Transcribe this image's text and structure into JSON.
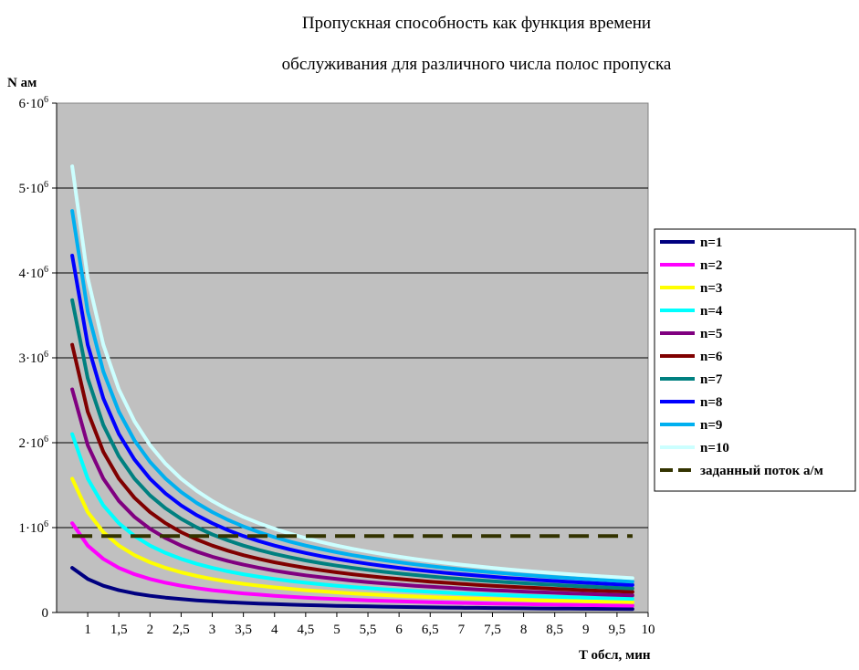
{
  "chart_data": {
    "type": "line",
    "title_lines": [
      "Пропускная способность как функция времени",
      "обслуживания для различного числа полос пропуска"
    ],
    "ylabel": "N ам",
    "xlabel": "T обсл, мин",
    "ylim": [
      0,
      6000000
    ],
    "xlim": [
      0.5,
      10
    ],
    "y_ticks": [
      {
        "value": 0,
        "base": "0",
        "exp": ""
      },
      {
        "value": 1000000,
        "base": "1·10",
        "exp": "6"
      },
      {
        "value": 2000000,
        "base": "2·10",
        "exp": "6"
      },
      {
        "value": 3000000,
        "base": "3·10",
        "exp": "6"
      },
      {
        "value": 4000000,
        "base": "4·10",
        "exp": "6"
      },
      {
        "value": 5000000,
        "base": "5·10",
        "exp": "6"
      },
      {
        "value": 6000000,
        "base": "6·10",
        "exp": "6"
      }
    ],
    "x_ticks": [
      {
        "value": 1,
        "label": "1"
      },
      {
        "value": 1.5,
        "label": "1,5"
      },
      {
        "value": 2,
        "label": "2"
      },
      {
        "value": 2.5,
        "label": "2,5"
      },
      {
        "value": 3,
        "label": "3"
      },
      {
        "value": 3.5,
        "label": "3,5"
      },
      {
        "value": 4,
        "label": "4"
      },
      {
        "value": 4.5,
        "label": "4,5"
      },
      {
        "value": 5,
        "label": "5"
      },
      {
        "value": 5.5,
        "label": "5,5"
      },
      {
        "value": 6,
        "label": "6"
      },
      {
        "value": 6.5,
        "label": "6,5"
      },
      {
        "value": 7,
        "label": "7"
      },
      {
        "value": 7.5,
        "label": "7,5"
      },
      {
        "value": 8,
        "label": "8"
      },
      {
        "value": 8.5,
        "label": "8,5"
      },
      {
        "value": 9,
        "label": "9"
      },
      {
        "value": 9.5,
        "label": "9,5"
      },
      {
        "value": 10,
        "label": "10"
      }
    ],
    "grid": {
      "horizontal": true,
      "vertical": false
    },
    "plot_background": "#C0C0C0",
    "legend_position": "right",
    "x": [
      0.75,
      1,
      1.25,
      1.5,
      1.75,
      2,
      2.25,
      2.5,
      2.75,
      3,
      3.25,
      3.5,
      3.75,
      4,
      4.25,
      4.5,
      4.75,
      5,
      5.25,
      5.5,
      5.75,
      6,
      6.25,
      6.5,
      6.75,
      7,
      7.25,
      7.5,
      7.75,
      8,
      8.25,
      8.5,
      8.75,
      9,
      9.25,
      9.5,
      9.75
    ],
    "series": [
      {
        "name": "n=1",
        "color": "#000080",
        "values": [
          525600,
          394200,
          315360,
          262800,
          225257,
          197100,
          175200,
          157680,
          143345,
          131400,
          121292,
          112629,
          105120,
          98550,
          92753,
          87600,
          82989,
          78840,
          75086,
          71673,
          68557,
          65700,
          63072,
          60646,
          58400,
          56314,
          54372,
          52560,
          50865,
          49275,
          47782,
          46376,
          45051,
          43800,
          42616,
          41495,
          40431
        ]
      },
      {
        "name": "n=2",
        "color": "#FF00FF",
        "values": [
          1051200,
          788400,
          630720,
          525600,
          450514,
          394200,
          350400,
          315360,
          286691,
          262800,
          242585,
          225257,
          210240,
          197100,
          185506,
          175200,
          165979,
          157680,
          150171,
          143345,
          137113,
          131400,
          126144,
          121292,
          116800,
          112629,
          108745,
          105120,
          101729,
          98550,
          95564,
          92753,
          90103,
          87600,
          85232,
          82989,
          80862
        ]
      },
      {
        "name": "n=3",
        "color": "#FFFF00",
        "values": [
          1576800,
          1182600,
          946080,
          788400,
          675771,
          591300,
          525600,
          473040,
          430036,
          394200,
          363877,
          337886,
          315360,
          295650,
          278259,
          262800,
          248968,
          236520,
          225257,
          215018,
          205670,
          197100,
          189216,
          181938,
          175200,
          168943,
          163117,
          157680,
          152594,
          147825,
          143345,
          139129,
          135154,
          131400,
          127849,
          124484,
          121292
        ]
      },
      {
        "name": "n=4",
        "color": "#00FFFF",
        "values": [
          2102400,
          1576800,
          1261440,
          1051200,
          901029,
          788400,
          700800,
          630720,
          573382,
          525600,
          485169,
          450514,
          420480,
          394200,
          371012,
          350400,
          331958,
          315360,
          300343,
          286691,
          274226,
          262800,
          252288,
          242585,
          233600,
          225257,
          217490,
          210240,
          203458,
          197100,
          191127,
          185506,
          180206,
          175200,
          170465,
          165979,
          161723
        ]
      },
      {
        "name": "n=5",
        "color": "#800080",
        "values": [
          2628000,
          1971000,
          1576800,
          1314000,
          1126286,
          985500,
          876000,
          788400,
          716727,
          657000,
          606462,
          563143,
          525600,
          492750,
          463765,
          438000,
          414947,
          394200,
          375429,
          358364,
          342783,
          328500,
          315360,
          303231,
          292000,
          281571,
          271862,
          262800,
          254323,
          246375,
          238909,
          231882,
          225257,
          219000,
          213081,
          207474,
          202154
        ]
      },
      {
        "name": "n=6",
        "color": "#800000",
        "values": [
          3153600,
          2365200,
          1892160,
          1576800,
          1351543,
          1182600,
          1051200,
          946080,
          860073,
          788400,
          727754,
          675771,
          630720,
          591300,
          556518,
          525600,
          497937,
          473040,
          450514,
          430036,
          411339,
          394200,
          378432,
          363877,
          350400,
          337886,
          326234,
          315360,
          305187,
          295650,
          286691,
          278259,
          270309,
          262800,
          255697,
          248968,
          242585
        ]
      },
      {
        "name": "n=7",
        "color": "#008080",
        "values": [
          3679200,
          2759400,
          2207520,
          1839600,
          1576800,
          1379700,
          1226400,
          1103760,
          1003418,
          919800,
          849046,
          788400,
          735840,
          689850,
          649271,
          613200,
          580926,
          551880,
          525600,
          501709,
          479896,
          459900,
          441504,
          424523,
          408800,
          394200,
          380607,
          367920,
          356052,
          344925,
          334473,
          324635,
          315360,
          306600,
          298314,
          290463,
          283015
        ]
      },
      {
        "name": "n=8",
        "color": "#0000FF",
        "values": [
          4204800,
          3153600,
          2522880,
          2102400,
          1802057,
          1576800,
          1401600,
          1261440,
          1146764,
          1051200,
          970338,
          901029,
          840960,
          788400,
          742024,
          700800,
          663916,
          630720,
          600686,
          573382,
          548452,
          525600,
          504576,
          485169,
          467200,
          450514,
          434979,
          420480,
          406916,
          394200,
          382255,
          371012,
          360411,
          350400,
          340930,
          331958,
          323446
        ]
      },
      {
        "name": "n=9",
        "color": "#00B0F0",
        "values": [
          4730400,
          3547800,
          2838240,
          2365200,
          2027314,
          1773900,
          1576800,
          1419120,
          1290109,
          1182600,
          1091631,
          1013657,
          946080,
          886950,
          834776,
          788400,
          746905,
          709560,
          675771,
          645055,
          617009,
          591300,
          567648,
          545815,
          525600,
          506829,
          489352,
          473040,
          457781,
          443475,
          430036,
          417388,
          405463,
          394200,
          383546,
          373453,
          363877
        ]
      },
      {
        "name": "n=10",
        "color": "#CCFFFF",
        "values": [
          5256000,
          3942000,
          3153600,
          2628000,
          2252571,
          1971000,
          1752000,
          1576800,
          1433455,
          1314000,
          1212923,
          1126286,
          1051200,
          985500,
          927529,
          876000,
          829895,
          788400,
          750857,
          716727,
          685565,
          657000,
          630720,
          606462,
          584000,
          563143,
          543724,
          525600,
          508645,
          492750,
          477818,
          463765,
          450514,
          438000,
          426162,
          414947,
          404308
        ]
      }
    ],
    "reference_line": {
      "name": "заданный поток а/м",
      "value": 900000,
      "color": "#333300",
      "style": "dashed"
    }
  }
}
